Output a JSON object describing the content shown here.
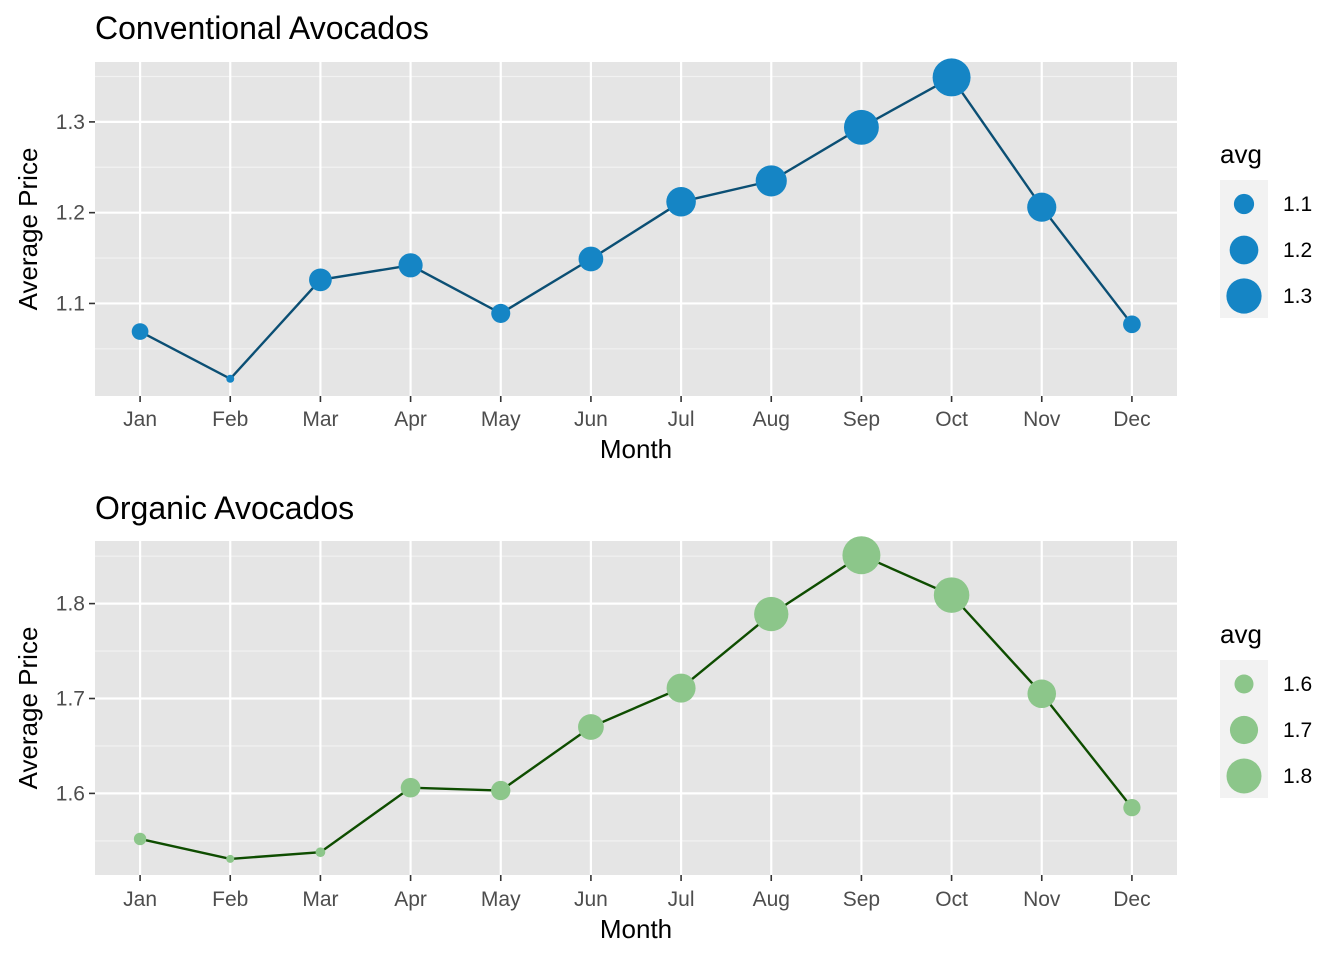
{
  "chart_data": [
    {
      "type": "line",
      "title": "Conventional Avocados",
      "xlabel": "Month",
      "ylabel": "Average Price",
      "categories": [
        "Jan",
        "Feb",
        "Mar",
        "Apr",
        "May",
        "Jun",
        "Jul",
        "Aug",
        "Sep",
        "Oct",
        "Nov",
        "Dec"
      ],
      "values": [
        1.069,
        1.017,
        1.126,
        1.142,
        1.089,
        1.149,
        1.212,
        1.235,
        1.294,
        1.349,
        1.206,
        1.077
      ],
      "ylim": [
        0.998,
        1.366
      ],
      "yticks": [
        1.1,
        1.2,
        1.3
      ],
      "ytick_labels": [
        "1.1",
        "1.2",
        "1.3"
      ],
      "grid": true,
      "point_size_by": "avg",
      "legend": {
        "title": "avg",
        "placement": "right",
        "values": [
          1.1,
          1.2,
          1.3
        ],
        "labels": [
          "1.1",
          "1.2",
          "1.3"
        ]
      },
      "point_color": "#1585c5",
      "line_color": "#0b4f74",
      "panel_color": "#e5e5e5"
    },
    {
      "type": "line",
      "title": "Organic Avocados",
      "xlabel": "Month",
      "ylabel": "Average Price",
      "categories": [
        "Jan",
        "Feb",
        "Mar",
        "Apr",
        "May",
        "Jun",
        "Jul",
        "Aug",
        "Sep",
        "Oct",
        "Nov",
        "Dec"
      ],
      "values": [
        1.552,
        1.531,
        1.538,
        1.606,
        1.603,
        1.67,
        1.711,
        1.789,
        1.851,
        1.809,
        1.705,
        1.585
      ],
      "ylim": [
        1.514,
        1.866
      ],
      "yticks": [
        1.6,
        1.7,
        1.8
      ],
      "ytick_labels": [
        "1.6",
        "1.7",
        "1.8"
      ],
      "grid": true,
      "point_size_by": "avg",
      "legend": {
        "title": "avg",
        "placement": "right",
        "values": [
          1.6,
          1.7,
          1.8
        ],
        "labels": [
          "1.6",
          "1.7",
          "1.8"
        ]
      },
      "point_color": "#8cc68a",
      "line_color": "#0e4d00",
      "panel_color": "#e5e5e5"
    }
  ]
}
